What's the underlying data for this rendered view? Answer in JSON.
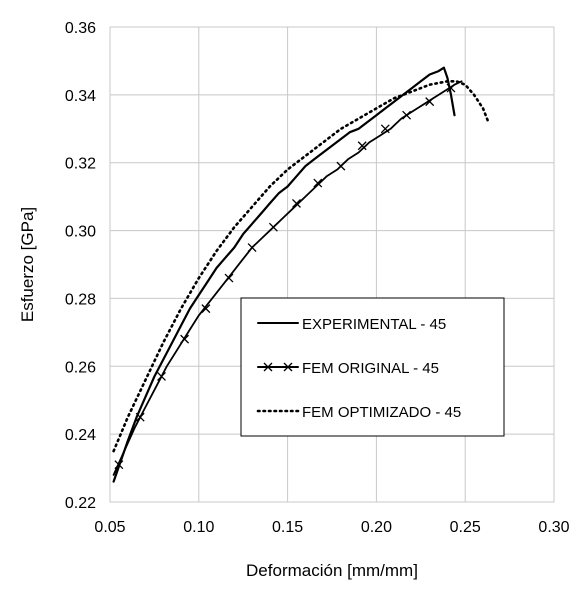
{
  "chart_data": {
    "type": "line",
    "title": "",
    "xlabel": "Deformación [mm/mm]",
    "ylabel": "Esfuerzo [GPa]",
    "xlim": [
      0.05,
      0.3
    ],
    "ylim": [
      0.22,
      0.36
    ],
    "x_ticks": [
      0.05,
      0.1,
      0.15,
      0.2,
      0.25,
      0.3
    ],
    "x_tick_labels": [
      "0.05",
      "0.10",
      "0.15",
      "0.20",
      "0.25",
      "0.30"
    ],
    "y_ticks": [
      0.22,
      0.24,
      0.26,
      0.28,
      0.3,
      0.32,
      0.34,
      0.36
    ],
    "y_tick_labels": [
      "0.22",
      "0.24",
      "0.26",
      "0.28",
      "0.30",
      "0.32",
      "0.34",
      "0.36"
    ],
    "grid": true,
    "legend_position": "center-right",
    "series": [
      {
        "name": "EXPERIMENTAL - 45",
        "style": "solid",
        "marker": "none",
        "color": "#000000",
        "x": [
          0.052,
          0.056,
          0.06,
          0.065,
          0.07,
          0.075,
          0.08,
          0.085,
          0.09,
          0.095,
          0.1,
          0.105,
          0.11,
          0.115,
          0.12,
          0.125,
          0.13,
          0.135,
          0.14,
          0.145,
          0.15,
          0.155,
          0.16,
          0.165,
          0.17,
          0.175,
          0.18,
          0.185,
          0.19,
          0.195,
          0.2,
          0.205,
          0.21,
          0.215,
          0.22,
          0.225,
          0.23,
          0.235,
          0.238,
          0.24,
          0.242,
          0.244
        ],
        "y": [
          0.226,
          0.232,
          0.238,
          0.245,
          0.251,
          0.257,
          0.262,
          0.267,
          0.272,
          0.277,
          0.281,
          0.285,
          0.289,
          0.292,
          0.295,
          0.299,
          0.302,
          0.305,
          0.308,
          0.311,
          0.313,
          0.316,
          0.319,
          0.321,
          0.323,
          0.325,
          0.327,
          0.329,
          0.33,
          0.332,
          0.334,
          0.336,
          0.338,
          0.34,
          0.342,
          0.344,
          0.346,
          0.347,
          0.348,
          0.345,
          0.34,
          0.334
        ]
      },
      {
        "name": "FEM ORIGINAL - 45",
        "style": "solid",
        "marker": "x",
        "color": "#000000",
        "x": [
          0.052,
          0.058,
          0.064,
          0.07,
          0.076,
          0.082,
          0.088,
          0.094,
          0.1,
          0.106,
          0.112,
          0.118,
          0.124,
          0.13,
          0.136,
          0.142,
          0.148,
          0.154,
          0.16,
          0.166,
          0.172,
          0.178,
          0.184,
          0.19,
          0.196,
          0.202,
          0.208,
          0.214,
          0.22,
          0.226,
          0.232,
          0.238,
          0.244,
          0.248
        ],
        "y": [
          0.228,
          0.235,
          0.242,
          0.248,
          0.254,
          0.26,
          0.265,
          0.27,
          0.275,
          0.279,
          0.283,
          0.287,
          0.291,
          0.295,
          0.298,
          0.301,
          0.304,
          0.307,
          0.31,
          0.313,
          0.316,
          0.318,
          0.321,
          0.323,
          0.326,
          0.328,
          0.33,
          0.333,
          0.335,
          0.337,
          0.339,
          0.341,
          0.343,
          0.344
        ],
        "marker_x": [
          0.055,
          0.067,
          0.079,
          0.092,
          0.104,
          0.117,
          0.13,
          0.142,
          0.155,
          0.167,
          0.18,
          0.192,
          0.205,
          0.217,
          0.23,
          0.242
        ],
        "marker_y": [
          0.231,
          0.245,
          0.257,
          0.268,
          0.277,
          0.286,
          0.295,
          0.301,
          0.308,
          0.314,
          0.319,
          0.325,
          0.33,
          0.334,
          0.338,
          0.342
        ]
      },
      {
        "name": "FEM OPTIMIZADO - 45",
        "style": "dotted",
        "marker": "none",
        "color": "#000000",
        "x": [
          0.052,
          0.06,
          0.07,
          0.08,
          0.09,
          0.1,
          0.11,
          0.12,
          0.13,
          0.14,
          0.15,
          0.16,
          0.17,
          0.18,
          0.19,
          0.2,
          0.21,
          0.22,
          0.23,
          0.24,
          0.245,
          0.25,
          0.255,
          0.26,
          0.263
        ],
        "y": [
          0.235,
          0.245,
          0.256,
          0.267,
          0.277,
          0.286,
          0.294,
          0.301,
          0.307,
          0.313,
          0.318,
          0.322,
          0.326,
          0.33,
          0.333,
          0.336,
          0.339,
          0.341,
          0.343,
          0.344,
          0.344,
          0.343,
          0.34,
          0.336,
          0.332
        ]
      }
    ]
  }
}
